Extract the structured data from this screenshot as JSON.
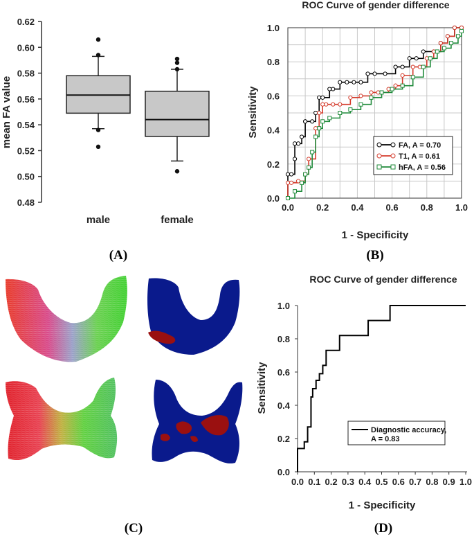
{
  "panels": [
    "(A)",
    "(B)",
    "(C)",
    "(D)"
  ],
  "chart_data": [
    {
      "type": "box",
      "ylabel": "mean FA value",
      "ylim": [
        0.48,
        0.62
      ],
      "yticks": [
        "0.48",
        "0.50",
        "0.52",
        "0.54",
        "0.56",
        "0.58",
        "0.60",
        "0.62"
      ],
      "categories": [
        "male",
        "female"
      ],
      "boxes": [
        {
          "name": "male",
          "q1": 0.549,
          "median": 0.563,
          "q3": 0.578,
          "whisker_low": 0.537,
          "whisker_high": 0.593,
          "outliers": [
            0.606,
            0.594,
            0.536,
            0.523
          ]
        },
        {
          "name": "female",
          "q1": 0.531,
          "median": 0.544,
          "q3": 0.566,
          "whisker_low": 0.512,
          "whisker_high": 0.583,
          "outliers": [
            0.591,
            0.588,
            0.583,
            0.504
          ]
        }
      ]
    },
    {
      "type": "line",
      "title": "ROC Curve of gender difference",
      "xlabel": "1 - Specificity",
      "ylabel": "Sensitivity",
      "xlim": [
        0,
        1
      ],
      "ylim": [
        0,
        1
      ],
      "xticks": [
        "0.0",
        "0.2",
        "0.4",
        "0.6",
        "0.8",
        "1.0"
      ],
      "yticks": [
        "0.0",
        "0.2",
        "0.4",
        "0.6",
        "0.8",
        "1.0"
      ],
      "series": [
        {
          "name": "FA, A = 0.70",
          "color": "#000000",
          "marker": "circle",
          "x": [
            0,
            0,
            0.02,
            0.04,
            0.04,
            0.06,
            0.08,
            0.1,
            0.1,
            0.14,
            0.16,
            0.18,
            0.2,
            0.24,
            0.26,
            0.3,
            0.34,
            0.38,
            0.42,
            0.46,
            0.5,
            0.56,
            0.62,
            0.66,
            0.7,
            0.74,
            0.78,
            0.84,
            0.88,
            0.92,
            0.96,
            1.0
          ],
          "y": [
            0,
            0.14,
            0.14,
            0.23,
            0.32,
            0.32,
            0.36,
            0.45,
            0.45,
            0.45,
            0.5,
            0.59,
            0.59,
            0.64,
            0.64,
            0.68,
            0.68,
            0.68,
            0.68,
            0.73,
            0.73,
            0.73,
            0.77,
            0.77,
            0.82,
            0.82,
            0.86,
            0.86,
            0.91,
            0.95,
            1.0,
            1.0
          ]
        },
        {
          "name": "T1, A = 0.61",
          "color": "#d43a2a",
          "marker": "circle",
          "x": [
            0,
            0,
            0.02,
            0.06,
            0.1,
            0.12,
            0.16,
            0.18,
            0.2,
            0.22,
            0.26,
            0.3,
            0.36,
            0.42,
            0.48,
            0.52,
            0.58,
            0.62,
            0.66,
            0.72,
            0.76,
            0.8,
            0.84,
            0.88,
            0.92,
            0.96,
            1.0
          ],
          "y": [
            0,
            0.09,
            0.09,
            0.1,
            0.14,
            0.23,
            0.41,
            0.5,
            0.55,
            0.55,
            0.55,
            0.55,
            0.59,
            0.6,
            0.62,
            0.62,
            0.64,
            0.66,
            0.72,
            0.77,
            0.77,
            0.82,
            0.86,
            0.91,
            0.95,
            1.0,
            1.0
          ]
        },
        {
          "name": "hFA, A = 0.56",
          "color": "#1f8a3a",
          "marker": "square",
          "x": [
            0,
            0.04,
            0.08,
            0.1,
            0.12,
            0.14,
            0.16,
            0.18,
            0.2,
            0.24,
            0.3,
            0.36,
            0.42,
            0.48,
            0.54,
            0.6,
            0.66,
            0.72,
            0.78,
            0.82,
            0.86,
            0.9,
            0.94,
            0.98,
            1.0
          ],
          "y": [
            0,
            0.04,
            0.09,
            0.14,
            0.18,
            0.27,
            0.36,
            0.41,
            0.45,
            0.47,
            0.5,
            0.52,
            0.55,
            0.59,
            0.62,
            0.64,
            0.66,
            0.71,
            0.77,
            0.82,
            0.86,
            0.88,
            0.91,
            0.95,
            0.98
          ]
        }
      ],
      "legend_position": "bottom-right"
    },
    {
      "type": "line",
      "title": "ROC Curve of gender difference",
      "xlabel": "1 - Specificity",
      "ylabel": "Sensitivity",
      "xlim": [
        0,
        1
      ],
      "ylim": [
        0,
        1
      ],
      "xticks": [
        "0.0",
        "0.1",
        "0.2",
        "0.3",
        "0.4",
        "0.5",
        "0.6",
        "0.7",
        "0.8",
        "0.9",
        "1.0"
      ],
      "yticks": [
        "0.0",
        "0.2",
        "0.4",
        "0.6",
        "0.8",
        "1.0"
      ],
      "series": [
        {
          "name": "Diagnostic accuracy,",
          "name_line2": "A = 0.83",
          "color": "#000000",
          "x": [
            0,
            0,
            0.01,
            0.01,
            0.04,
            0.04,
            0.06,
            0.06,
            0.08,
            0.08,
            0.09,
            0.09,
            0.11,
            0.11,
            0.13,
            0.13,
            0.15,
            0.15,
            0.17,
            0.17,
            0.25,
            0.25,
            0.42,
            0.42,
            0.55,
            0.55,
            1.0
          ],
          "y": [
            0,
            0.14,
            0.14,
            0.14,
            0.14,
            0.18,
            0.18,
            0.27,
            0.27,
            0.45,
            0.45,
            0.5,
            0.5,
            0.55,
            0.55,
            0.59,
            0.59,
            0.64,
            0.64,
            0.73,
            0.73,
            0.82,
            0.82,
            0.91,
            0.91,
            1.0,
            1.0
          ]
        }
      ],
      "legend_position": "bottom-right"
    }
  ],
  "images": {
    "panel_c": [
      "fiber-tractography-male",
      "fa-difference-map-male",
      "fiber-tractography-female",
      "fa-difference-map-female"
    ],
    "colors": {
      "red": "#e02020",
      "green": "#40d030",
      "blue": "#6a7ad8",
      "navy": "#0a1a8c",
      "dark_red": "#9a1010"
    }
  }
}
